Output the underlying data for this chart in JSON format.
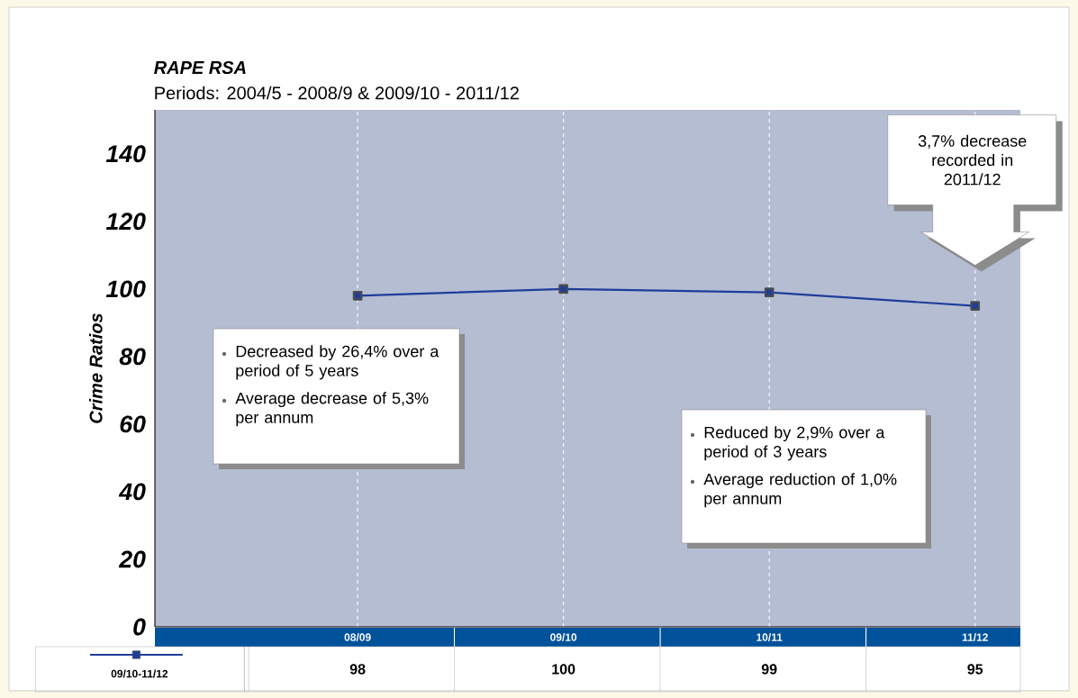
{
  "chart_data": {
    "type": "line",
    "title": "RAPE RSA",
    "subtitle": "Periods: 2004/5 - 2008/9 & 2009/10 - 2011/12",
    "ylabel": "Crime Ratios",
    "categories": [
      "08/09",
      "09/10",
      "10/11",
      "11/12"
    ],
    "series": [
      {
        "name": "09/10-11/12",
        "color": "#1f3d99",
        "values": [
          98,
          100,
          99,
          95
        ]
      }
    ],
    "ylim": [
      0,
      153
    ],
    "yticks": [
      0,
      20,
      40,
      60,
      80,
      100,
      120,
      140
    ],
    "grid": "x",
    "marker": "square",
    "line_style": "solid",
    "legend": "bottom left",
    "data_labels": true,
    "annotations": [
      "Decreased by 26,4% over a period of 5 years",
      "Average decrease of 5,3% per annum",
      "Reduced by 2,9% over a period of 3 years",
      "Average reduction of 1,0% per annum",
      "3,7% decrease recorded in 2011/12"
    ]
  }
}
